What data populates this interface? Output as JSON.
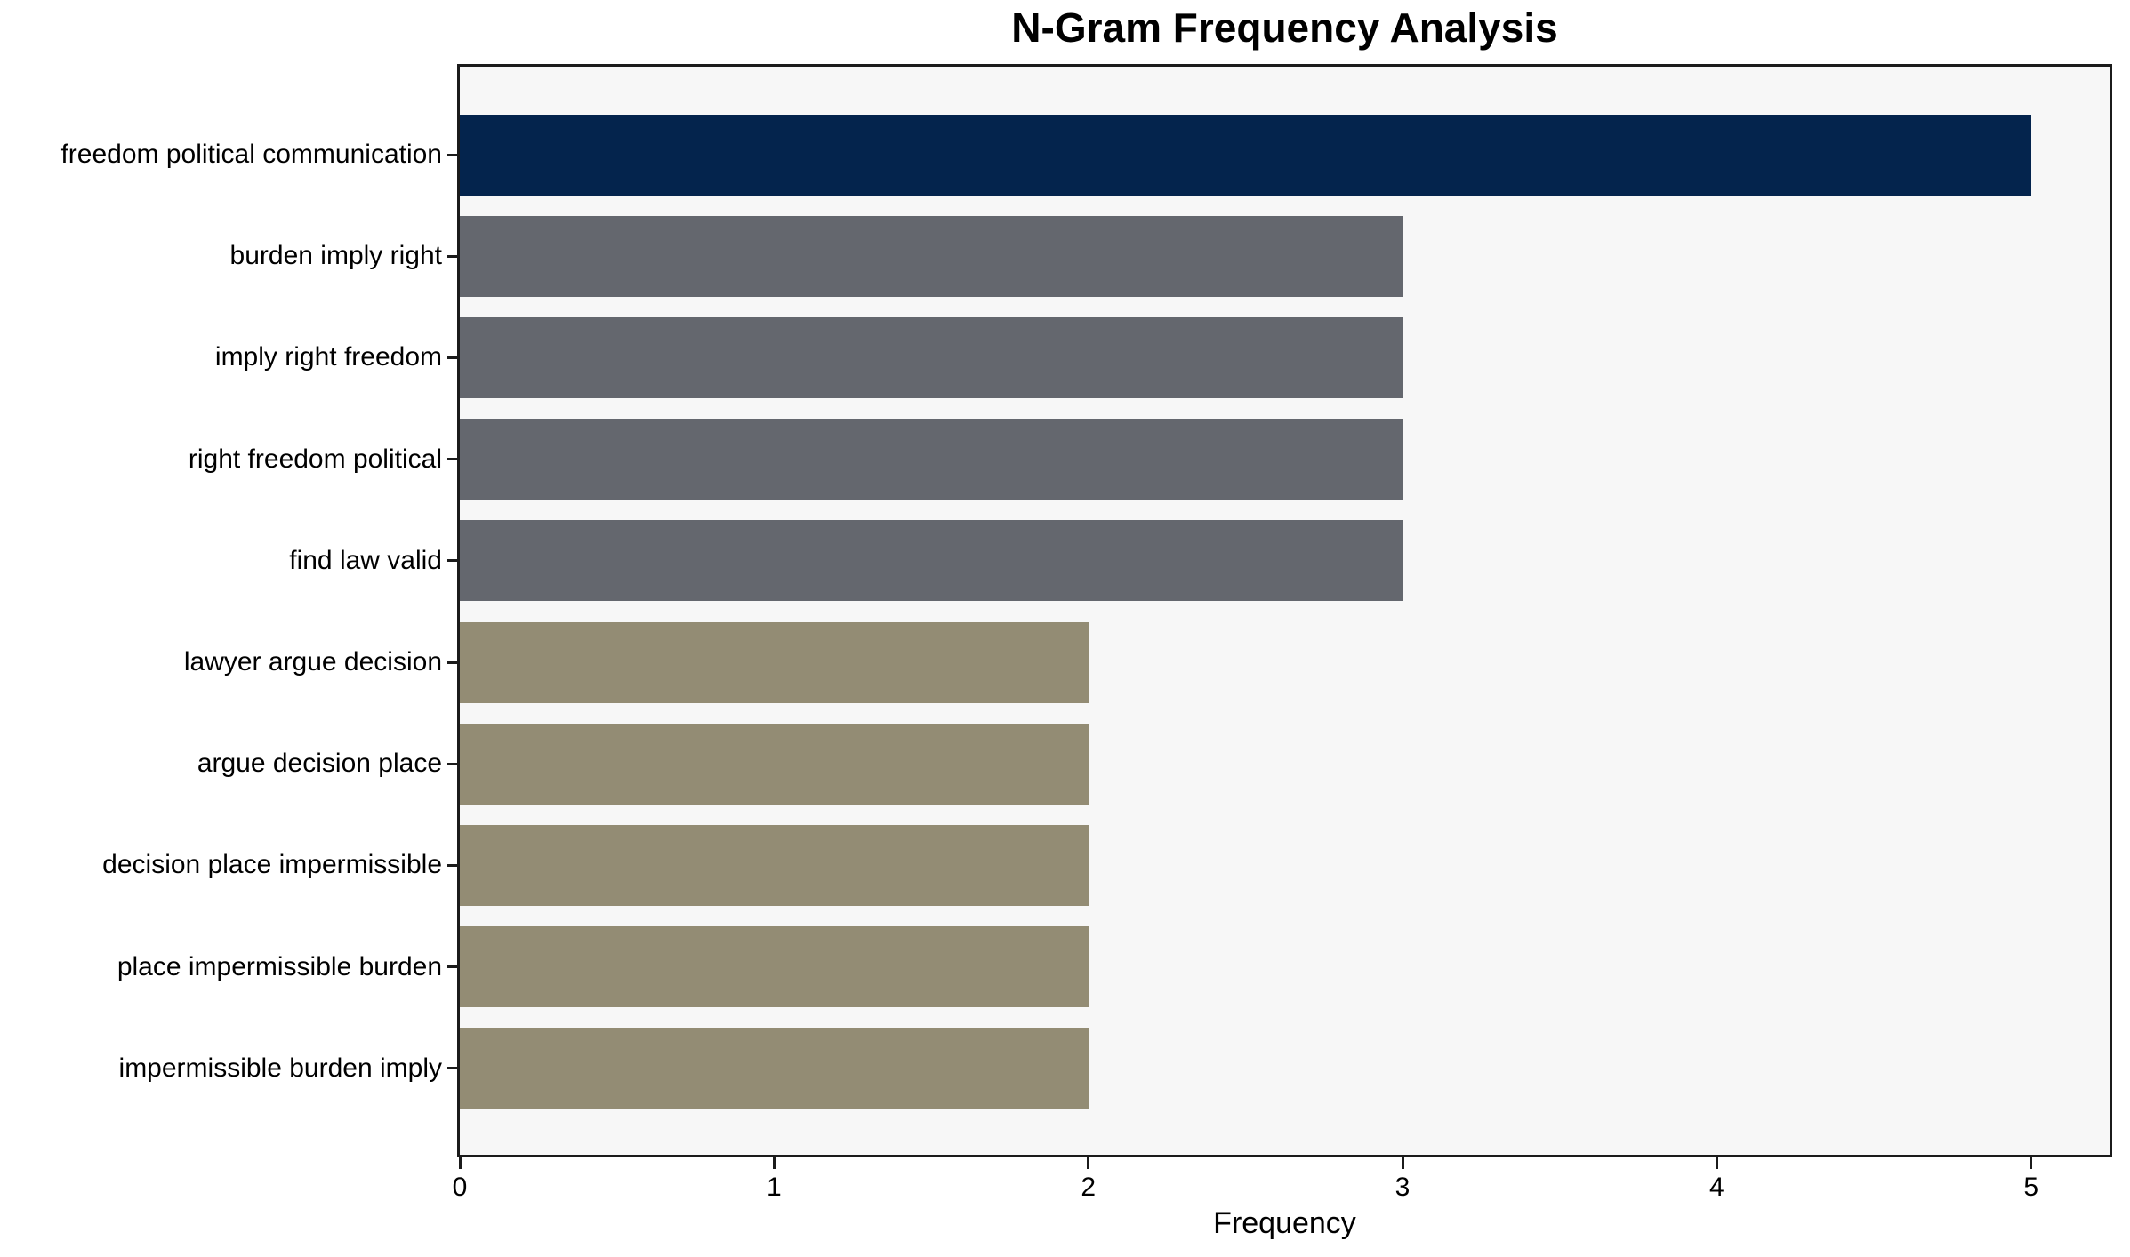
{
  "chart_data": {
    "type": "bar",
    "orientation": "horizontal",
    "title": "N-Gram Frequency Analysis",
    "xlabel": "Frequency",
    "ylabel": "",
    "categories": [
      "freedom political communication",
      "burden imply right",
      "imply right freedom",
      "right freedom political",
      "find law valid",
      "lawyer argue decision",
      "argue decision place",
      "decision place impermissible",
      "place impermissible burden",
      "impermissible burden imply"
    ],
    "values": [
      5,
      3,
      3,
      3,
      3,
      2,
      2,
      2,
      2,
      2
    ],
    "bar_colors": [
      "#04244D",
      "#64676E",
      "#64676E",
      "#64676E",
      "#64676E",
      "#938C74",
      "#938C74",
      "#938C74",
      "#938C74",
      "#938C74"
    ],
    "xticks": [
      0,
      1,
      2,
      3,
      4,
      5
    ],
    "xtick_labels": [
      "0",
      "1",
      "2",
      "3",
      "4",
      "5"
    ],
    "xlim": [
      0,
      5.25
    ],
    "grid": false,
    "legend": null,
    "plot_background": "#F7F7F7",
    "figure_background": "#FFFFFF",
    "spine_color": "#1B1B1B"
  }
}
